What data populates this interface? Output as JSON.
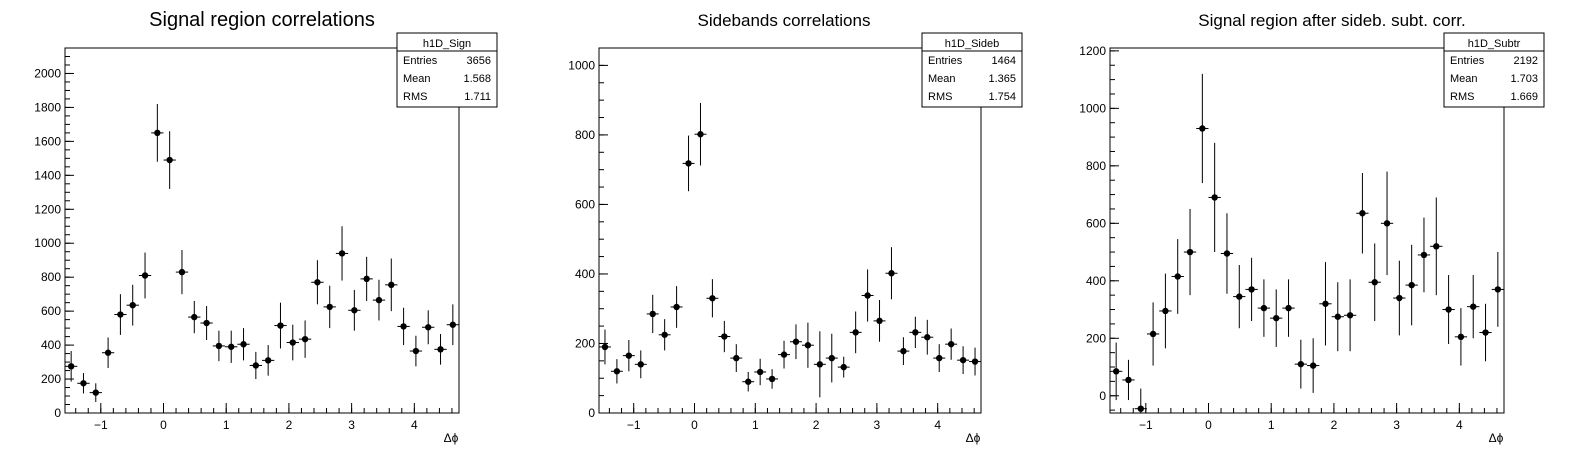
{
  "chart_data": [
    {
      "type": "scatter",
      "title": "Signal region correlations",
      "xlabel": "Δϕ",
      "ylabel": "",
      "xlim": [
        -1.5708,
        4.7124
      ],
      "ylim": [
        0,
        2150
      ],
      "yticks": [
        0,
        200,
        400,
        600,
        800,
        1000,
        1200,
        1400,
        1600,
        1800,
        2000
      ],
      "xticks": [
        -1,
        0,
        1,
        2,
        3,
        4
      ],
      "stats": {
        "name": "h1D_Sign",
        "rows": [
          {
            "label": "Entries",
            "value": "3656"
          },
          {
            "label": "Mean",
            "value": "1.568"
          },
          {
            "label": "RMS",
            "value": "1.711"
          }
        ]
      },
      "series": [
        {
          "x": [
            -1.4726,
            -1.2763,
            -1.0799,
            -0.8836,
            -0.6872,
            -0.4909,
            -0.2945,
            -0.0982,
            0.0982,
            0.2945,
            0.4909,
            0.6872,
            0.8836,
            1.0799,
            1.2763,
            1.4726,
            1.669,
            1.8653,
            2.0617,
            2.258,
            2.4544,
            2.6507,
            2.8471,
            3.0434,
            3.2398,
            3.4361,
            3.6325,
            3.8288,
            4.0252,
            4.2215,
            4.4179,
            4.6142
          ],
          "y": [
            275,
            175,
            120,
            355,
            580,
            635,
            810,
            1650,
            1490,
            830,
            565,
            530,
            395,
            390,
            405,
            280,
            310,
            515,
            415,
            435,
            770,
            625,
            940,
            605,
            790,
            665,
            755,
            510,
            365,
            505,
            375,
            520
          ],
          "err": [
            90,
            60,
            55,
            90,
            120,
            120,
            135,
            170,
            170,
            130,
            95,
            100,
            90,
            95,
            95,
            80,
            90,
            135,
            105,
            110,
            130,
            125,
            160,
            120,
            130,
            120,
            155,
            110,
            90,
            100,
            90,
            120
          ]
        }
      ]
    },
    {
      "type": "scatter",
      "title": "Sidebands correlations",
      "xlabel": "Δϕ",
      "ylabel": "",
      "xlim": [
        -1.5708,
        4.7124
      ],
      "ylim": [
        0,
        1050
      ],
      "yticks": [
        0,
        200,
        400,
        600,
        800,
        1000
      ],
      "xticks": [
        -1,
        0,
        1,
        2,
        3,
        4
      ],
      "stats": {
        "name": "h1D_Sideb",
        "rows": [
          {
            "label": "Entries",
            "value": "1464"
          },
          {
            "label": "Mean",
            "value": "1.365"
          },
          {
            "label": "RMS",
            "value": "1.754"
          }
        ]
      },
      "series": [
        {
          "x": [
            -1.4726,
            -1.2763,
            -1.0799,
            -0.8836,
            -0.6872,
            -0.4909,
            -0.2945,
            -0.0982,
            0.0982,
            0.2945,
            0.4909,
            0.6872,
            0.8836,
            1.0799,
            1.2763,
            1.4726,
            1.669,
            1.8653,
            2.0617,
            2.258,
            2.4544,
            2.6507,
            2.8471,
            3.0434,
            3.2398,
            3.4361,
            3.6325,
            3.8288,
            4.0252,
            4.2215,
            4.4179,
            4.6142
          ],
          "y": [
            190,
            120,
            165,
            140,
            285,
            225,
            305,
            718,
            802,
            330,
            220,
            158,
            90,
            118,
            98,
            168,
            205,
            195,
            140,
            158,
            132,
            232,
            338,
            265,
            402,
            178,
            232,
            218,
            158,
            198,
            152,
            148
          ],
          "err": [
            50,
            35,
            45,
            40,
            55,
            45,
            60,
            80,
            90,
            55,
            45,
            40,
            28,
            38,
            28,
            40,
            50,
            65,
            95,
            70,
            30,
            60,
            75,
            60,
            75,
            40,
            45,
            50,
            40,
            45,
            40,
            40
          ]
        }
      ]
    },
    {
      "type": "scatter",
      "title": "Signal region after sideb. subt. corr.",
      "xlabel": "Δϕ",
      "ylabel": "",
      "xlim": [
        -1.5708,
        4.7124
      ],
      "ylim": [
        -60,
        1210
      ],
      "yticks": [
        0,
        200,
        400,
        600,
        800,
        1000,
        1200
      ],
      "xticks": [
        -1,
        0,
        1,
        2,
        3,
        4
      ],
      "stats": {
        "name": "h1D_Subtr",
        "rows": [
          {
            "label": "Entries",
            "value": "2192"
          },
          {
            "label": "Mean",
            "value": "1.703"
          },
          {
            "label": "RMS",
            "value": "1.669"
          }
        ]
      },
      "series": [
        {
          "x": [
            -1.4726,
            -1.2763,
            -1.0799,
            -0.8836,
            -0.6872,
            -0.4909,
            -0.2945,
            -0.0982,
            0.0982,
            0.2945,
            0.4909,
            0.6872,
            0.8836,
            1.0799,
            1.2763,
            1.4726,
            1.669,
            1.8653,
            2.0617,
            2.258,
            2.4544,
            2.6507,
            2.8471,
            3.0434,
            3.2398,
            3.4361,
            3.6325,
            3.8288,
            4.0252,
            4.2215,
            4.4179,
            4.6142
          ],
          "y": [
            85,
            55,
            -45,
            215,
            295,
            415,
            500,
            930,
            690,
            495,
            345,
            370,
            305,
            270,
            305,
            110,
            105,
            320,
            275,
            280,
            635,
            395,
            600,
            340,
            385,
            490,
            520,
            300,
            205,
            310,
            220,
            370
          ],
          "err": [
            100,
            70,
            70,
            110,
            130,
            130,
            150,
            190,
            190,
            140,
            110,
            110,
            100,
            100,
            100,
            85,
            95,
            145,
            120,
            125,
            140,
            135,
            180,
            130,
            140,
            130,
            170,
            120,
            100,
            110,
            100,
            130
          ]
        }
      ]
    }
  ]
}
